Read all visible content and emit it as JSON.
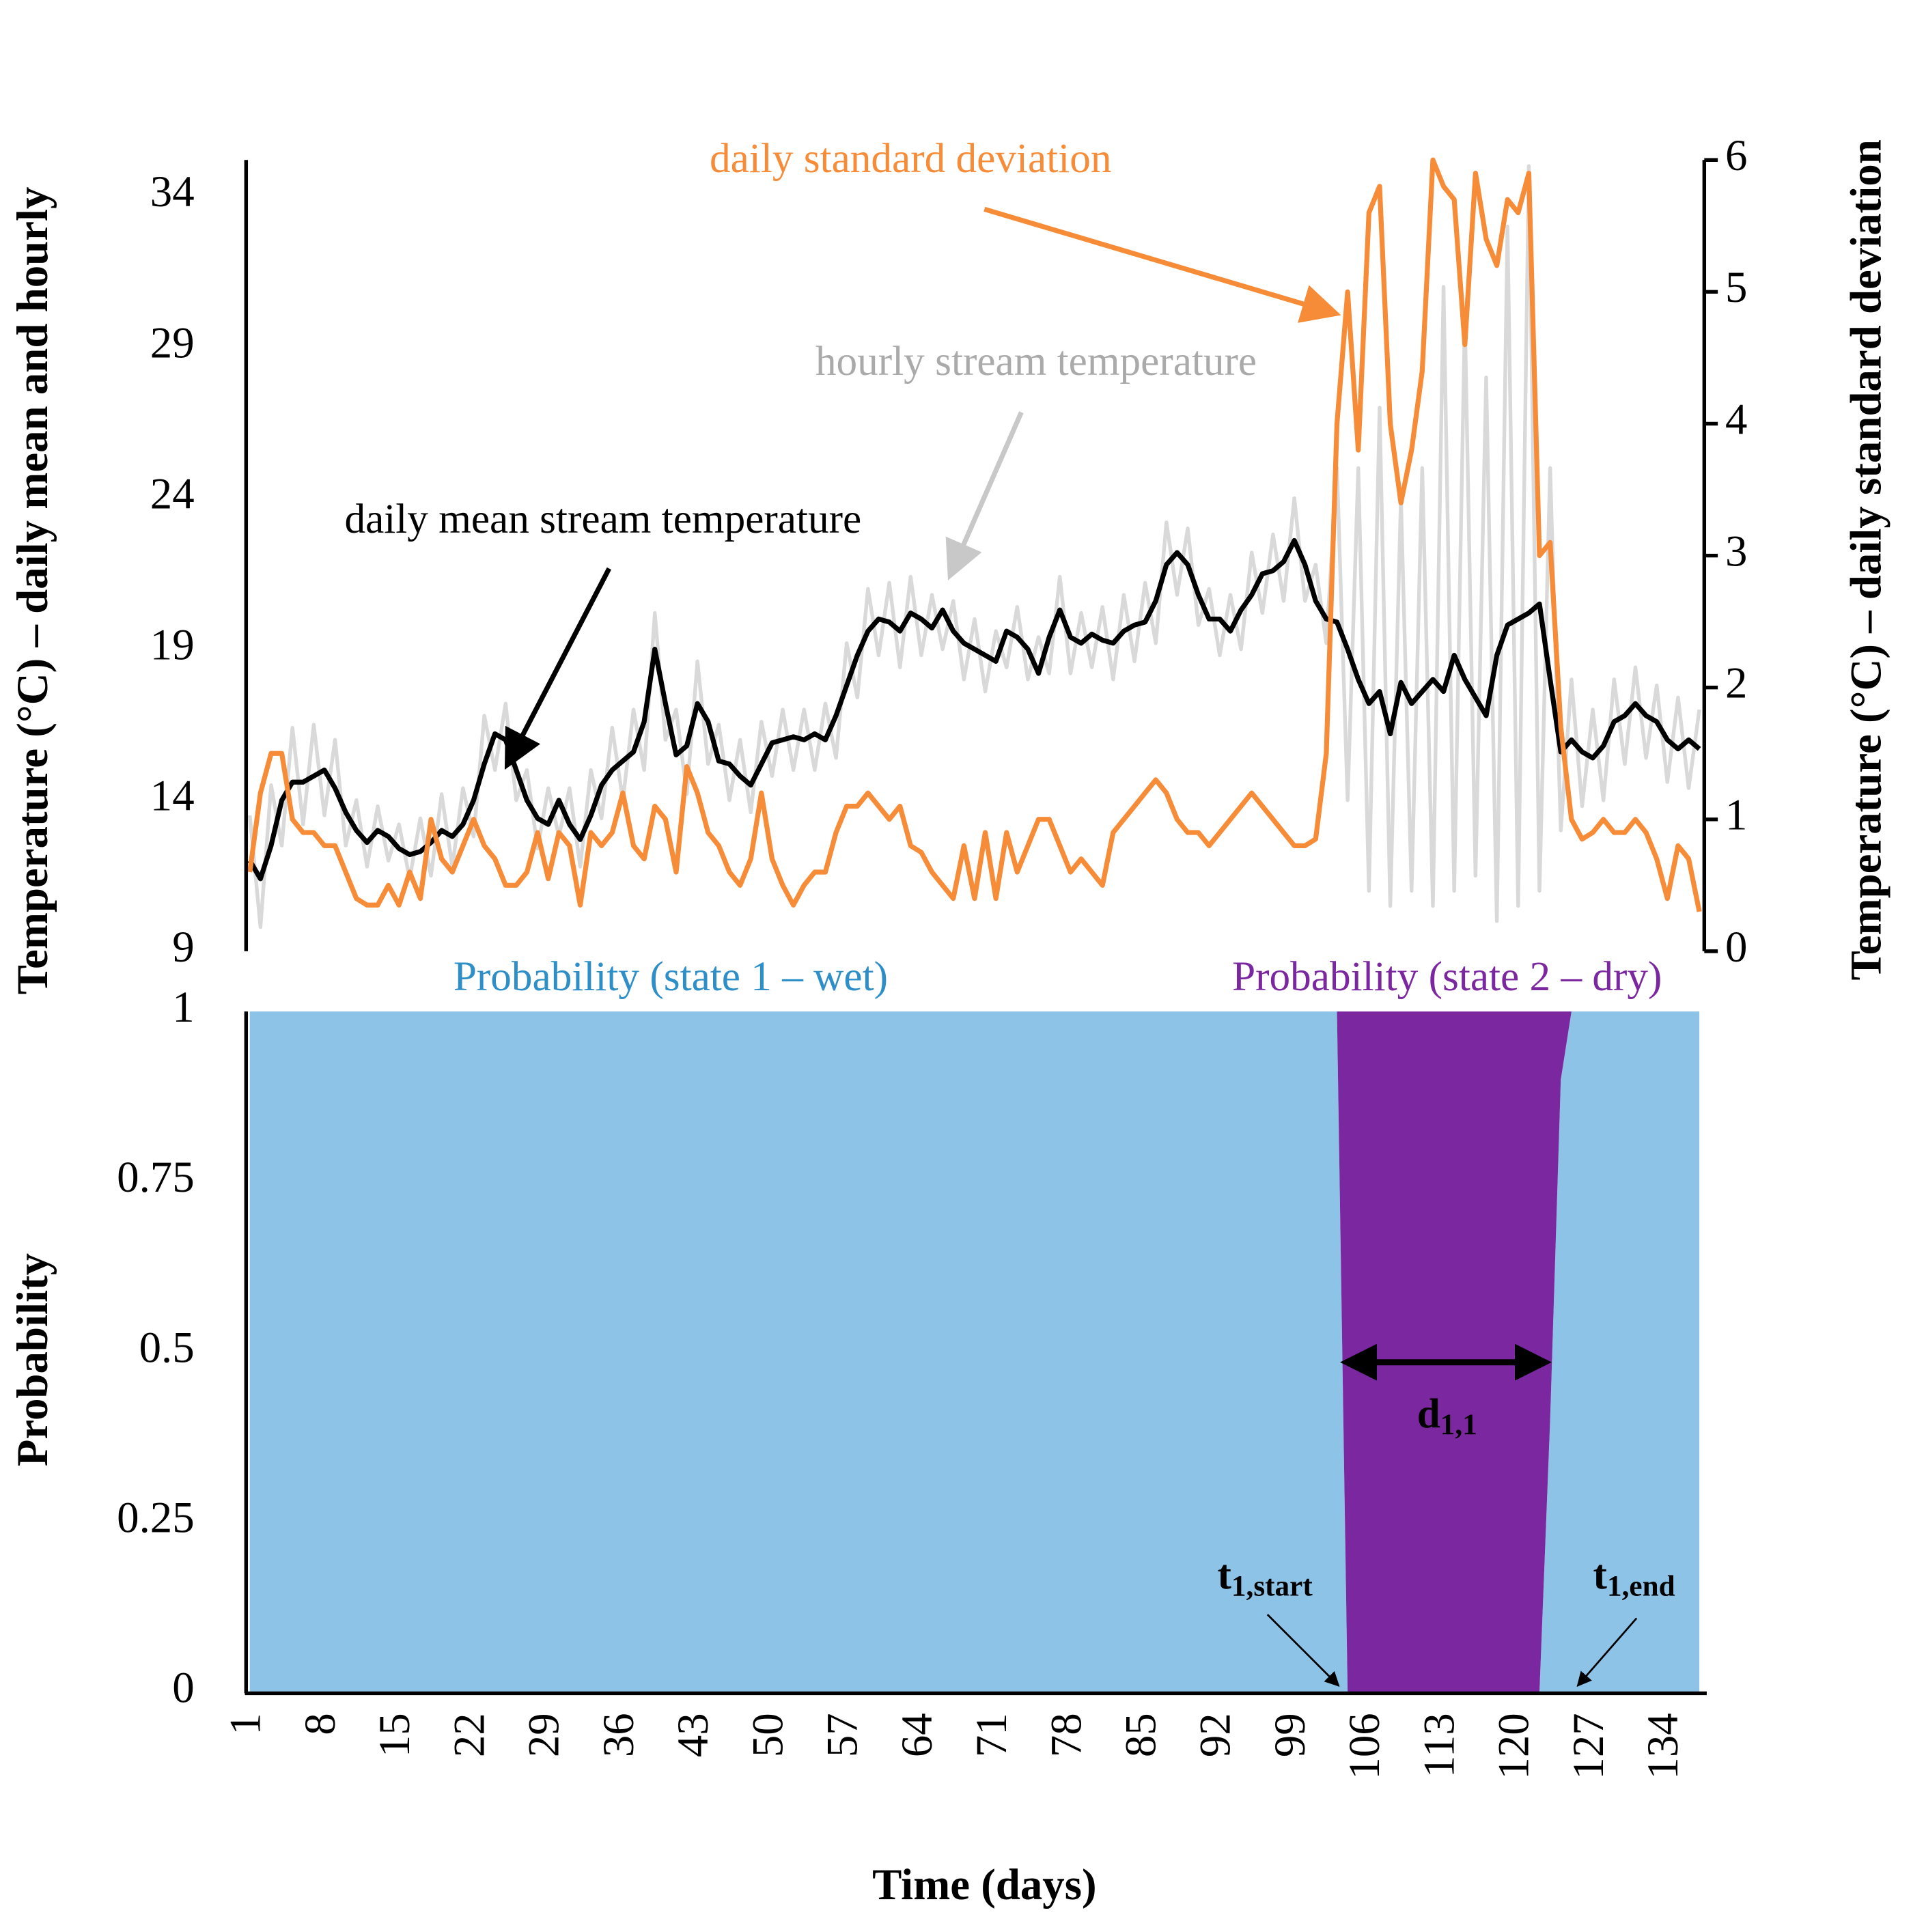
{
  "chart_data": [
    {
      "type": "line",
      "x": [
        1,
        2,
        3,
        4,
        5,
        6,
        7,
        8,
        9,
        10,
        11,
        12,
        13,
        14,
        15,
        16,
        17,
        18,
        19,
        20,
        21,
        22,
        23,
        24,
        25,
        26,
        27,
        28,
        29,
        30,
        31,
        32,
        33,
        34,
        35,
        36,
        37,
        38,
        39,
        40,
        41,
        42,
        43,
        44,
        45,
        46,
        47,
        48,
        49,
        50,
        51,
        52,
        53,
        54,
        55,
        56,
        57,
        58,
        59,
        60,
        61,
        62,
        63,
        64,
        65,
        66,
        67,
        68,
        69,
        70,
        71,
        72,
        73,
        74,
        75,
        76,
        77,
        78,
        79,
        80,
        81,
        82,
        83,
        84,
        85,
        86,
        87,
        88,
        89,
        90,
        91,
        92,
        93,
        94,
        95,
        96,
        97,
        98,
        99,
        100,
        101,
        102,
        103,
        104,
        105,
        106,
        107,
        108,
        109,
        110,
        111,
        112,
        113,
        114,
        115,
        116,
        117,
        118,
        119,
        120,
        121,
        122,
        123,
        124,
        125,
        126,
        127,
        128,
        129,
        130,
        131,
        132,
        133,
        134,
        135,
        136,
        137
      ],
      "xlim": [
        1,
        137
      ],
      "ylim": [
        9,
        35.2
      ],
      "yticks": [
        9,
        14,
        19,
        24,
        29,
        34
      ],
      "y2lim": [
        0,
        6
      ],
      "y2ticks": [
        0,
        1,
        2,
        3,
        4,
        5,
        6
      ],
      "y_label": "Temperature (°C) – daily mean and hourly",
      "y2_label": "Temperature (°C) – daily standard deviation",
      "series": [
        {
          "name": "hourly stream temperature",
          "color": "#d9d9d9",
          "values": [
            13.5,
            9.8,
            14.5,
            12.5,
            16.4,
            13.2,
            16.5,
            13.5,
            16.0,
            12.5,
            14.0,
            11.8,
            13.8,
            12.0,
            13.2,
            11.4,
            13.4,
            11.5,
            14.2,
            11.8,
            14.4,
            12.8,
            16.8,
            15.0,
            17.2,
            14.0,
            15.0,
            12.4,
            14.4,
            12.8,
            14.4,
            11.8,
            15.0,
            13.4,
            16.4,
            14.0,
            17.0,
            15.0,
            20.2,
            16.0,
            17.0,
            14.2,
            18.6,
            15.2,
            16.5,
            14.0,
            16.0,
            13.6,
            16.6,
            14.8,
            17.0,
            15.0,
            17.0,
            15.0,
            17.2,
            15.4,
            19.2,
            17.4,
            21.0,
            18.8,
            21.2,
            18.4,
            21.4,
            18.8,
            20.8,
            19.0,
            20.6,
            18.0,
            20.0,
            17.6,
            19.6,
            18.4,
            20.4,
            18.0,
            19.4,
            18.2,
            21.4,
            18.2,
            20.2,
            18.4,
            20.4,
            18.0,
            20.8,
            18.6,
            21.2,
            19.2,
            23.2,
            20.8,
            23.0,
            19.8,
            21.0,
            18.8,
            20.8,
            19.0,
            22.2,
            20.2,
            22.8,
            20.6,
            24.0,
            20.6,
            21.8,
            19.2,
            25.0,
            14.0,
            25.0,
            11.0,
            27.0,
            10.5,
            24.0,
            11.0,
            25.0,
            10.5,
            31.0,
            11.0,
            30.0,
            11.5,
            28.0,
            10.0,
            33.0,
            10.5,
            35.0,
            11.0,
            25.0,
            13.0,
            18.0,
            13.8,
            17.0,
            14.0,
            18.0,
            15.2,
            18.4,
            15.4,
            17.8,
            14.6,
            17.4,
            14.4,
            17.0
          ]
        },
        {
          "name": "daily mean stream temperature",
          "color": "#000000",
          "values": [
            12.0,
            11.4,
            12.5,
            14.0,
            14.6,
            14.6,
            14.8,
            15.0,
            14.4,
            13.6,
            13.0,
            12.6,
            13.0,
            12.8,
            12.4,
            12.2,
            12.3,
            12.6,
            13.0,
            12.8,
            13.2,
            14.0,
            15.2,
            16.2,
            16.0,
            15.0,
            14.0,
            13.4,
            13.2,
            14.0,
            13.2,
            12.7,
            13.5,
            14.5,
            15.0,
            15.3,
            15.6,
            16.6,
            19.0,
            17.2,
            15.5,
            15.8,
            17.2,
            16.6,
            15.3,
            15.2,
            14.8,
            14.5,
            15.2,
            15.9,
            16.0,
            16.1,
            16.0,
            16.2,
            16.0,
            16.8,
            17.8,
            18.8,
            19.6,
            20.0,
            19.9,
            19.6,
            20.2,
            20.0,
            19.7,
            20.3,
            19.6,
            19.2,
            19.0,
            18.8,
            18.6,
            19.6,
            19.4,
            19.0,
            18.2,
            19.4,
            20.3,
            19.4,
            19.2,
            19.5,
            19.3,
            19.2,
            19.6,
            19.8,
            19.9,
            20.6,
            21.8,
            22.2,
            21.8,
            20.8,
            20.0,
            20.0,
            19.6,
            20.3,
            20.8,
            21.5,
            21.6,
            21.9,
            22.6,
            21.8,
            20.6,
            20.0,
            19.9,
            19.0,
            18.0,
            17.2,
            17.6,
            16.2,
            17.9,
            17.2,
            17.6,
            18.0,
            17.6,
            18.8,
            18.0,
            17.4,
            16.8,
            18.8,
            19.8,
            20.0,
            20.2,
            20.5,
            18.0,
            15.6,
            16.0,
            15.6,
            15.4,
            15.8,
            16.6,
            16.8,
            17.2,
            16.8,
            16.6,
            16.0,
            15.7,
            16.0,
            15.7
          ]
        },
        {
          "name": "daily standard deviation",
          "color": "#f78c38",
          "axis": "y2",
          "values": [
            0.6,
            1.2,
            1.5,
            1.5,
            1.0,
            0.9,
            0.9,
            0.8,
            0.8,
            0.6,
            0.4,
            0.35,
            0.35,
            0.5,
            0.35,
            0.6,
            0.4,
            1.0,
            0.7,
            0.6,
            0.8,
            1.0,
            0.8,
            0.7,
            0.5,
            0.5,
            0.6,
            0.9,
            0.55,
            0.9,
            0.8,
            0.35,
            0.9,
            0.8,
            0.9,
            1.2,
            0.8,
            0.7,
            1.1,
            1.0,
            0.6,
            1.4,
            1.2,
            0.9,
            0.8,
            0.6,
            0.5,
            0.7,
            1.2,
            0.7,
            0.5,
            0.35,
            0.5,
            0.6,
            0.6,
            0.9,
            1.1,
            1.1,
            1.2,
            1.1,
            1.0,
            1.1,
            0.8,
            0.75,
            0.6,
            0.5,
            0.4,
            0.8,
            0.4,
            0.9,
            0.4,
            0.9,
            0.6,
            0.8,
            1.0,
            1.0,
            0.8,
            0.6,
            0.7,
            0.6,
            0.5,
            0.9,
            1.0,
            1.1,
            1.2,
            1.3,
            1.2,
            1.0,
            0.9,
            0.9,
            0.8,
            0.9,
            1.0,
            1.1,
            1.2,
            1.1,
            1.0,
            0.9,
            0.8,
            0.8,
            0.85,
            1.5,
            4.0,
            5.0,
            3.8,
            5.6,
            5.8,
            4.0,
            3.4,
            3.8,
            4.4,
            6.0,
            5.8,
            5.7,
            4.6,
            5.9,
            5.4,
            5.2,
            5.7,
            5.6,
            5.9,
            3.0,
            3.1,
            1.7,
            1.0,
            0.85,
            0.9,
            1.0,
            0.9,
            0.9,
            1.0,
            0.9,
            0.7,
            0.4,
            0.8,
            0.7,
            0.3
          ]
        }
      ]
    },
    {
      "type": "area",
      "stacked": true,
      "x": [
        1,
        2,
        3,
        4,
        5,
        6,
        7,
        8,
        9,
        10,
        11,
        12,
        13,
        14,
        15,
        16,
        17,
        18,
        19,
        20,
        21,
        22,
        23,
        24,
        25,
        26,
        27,
        28,
        29,
        30,
        31,
        32,
        33,
        34,
        35,
        36,
        37,
        38,
        39,
        40,
        41,
        42,
        43,
        44,
        45,
        46,
        47,
        48,
        49,
        50,
        51,
        52,
        53,
        54,
        55,
        56,
        57,
        58,
        59,
        60,
        61,
        62,
        63,
        64,
        65,
        66,
        67,
        68,
        69,
        70,
        71,
        72,
        73,
        74,
        75,
        76,
        77,
        78,
        79,
        80,
        81,
        82,
        83,
        84,
        85,
        86,
        87,
        88,
        89,
        90,
        91,
        92,
        93,
        94,
        95,
        96,
        97,
        98,
        99,
        100,
        101,
        102,
        103,
        104,
        105,
        106,
        107,
        108,
        109,
        110,
        111,
        112,
        113,
        114,
        115,
        116,
        117,
        118,
        119,
        120,
        121,
        122,
        123,
        124,
        125,
        126,
        127,
        128,
        129,
        130,
        131,
        132,
        133,
        134,
        135,
        136,
        137
      ],
      "xlim": [
        1,
        137
      ],
      "xticks": [
        1,
        8,
        15,
        22,
        29,
        36,
        43,
        50,
        57,
        64,
        71,
        78,
        85,
        92,
        99,
        106,
        113,
        120,
        127,
        134
      ],
      "ylim": [
        0,
        1
      ],
      "yticks": [
        0,
        0.25,
        0.5,
        0.75,
        1
      ],
      "x_label": "Time (days)",
      "y_label": "Probability",
      "series": [
        {
          "name": "Probability (state 1 – wet)",
          "color": "#8ec3e8",
          "values": [
            1,
            1,
            1,
            1,
            1,
            1,
            1,
            1,
            1,
            1,
            1,
            1,
            1,
            1,
            1,
            1,
            1,
            1,
            1,
            1,
            1,
            1,
            1,
            1,
            1,
            1,
            1,
            1,
            1,
            1,
            1,
            1,
            1,
            1,
            1,
            1,
            1,
            1,
            1,
            1,
            1,
            1,
            1,
            1,
            1,
            1,
            1,
            1,
            1,
            1,
            1,
            1,
            1,
            1,
            1,
            1,
            1,
            1,
            1,
            1,
            1,
            1,
            1,
            1,
            1,
            1,
            1,
            1,
            1,
            1,
            1,
            1,
            1,
            1,
            1,
            1,
            1,
            1,
            1,
            1,
            1,
            1,
            1,
            1,
            1,
            1,
            1,
            1,
            1,
            1,
            1,
            1,
            1,
            1,
            1,
            1,
            1,
            1,
            1,
            1,
            1,
            1,
            1,
            0,
            0,
            0,
            0,
            0,
            0,
            0,
            0,
            0,
            0,
            0,
            0,
            0,
            0,
            0,
            0,
            0,
            0,
            0,
            0.4,
            0.9,
            1,
            1,
            1,
            1,
            1,
            1,
            1,
            1,
            1,
            1,
            1,
            1,
            1
          ]
        },
        {
          "name": "Probability (state 2 – dry)",
          "color": "#7b28a0",
          "values": [
            0,
            0,
            0,
            0,
            0,
            0,
            0,
            0,
            0,
            0,
            0,
            0,
            0,
            0,
            0,
            0,
            0,
            0,
            0,
            0,
            0,
            0,
            0,
            0,
            0,
            0,
            0,
            0,
            0,
            0,
            0,
            0,
            0,
            0,
            0,
            0,
            0,
            0,
            0,
            0,
            0,
            0,
            0,
            0,
            0,
            0,
            0,
            0,
            0,
            0,
            0,
            0,
            0,
            0,
            0,
            0,
            0,
            0,
            0,
            0,
            0,
            0,
            0,
            0,
            0,
            0,
            0,
            0,
            0,
            0,
            0,
            0,
            0,
            0,
            0,
            0,
            0,
            0,
            0,
            0,
            0,
            0,
            0,
            0,
            0,
            0,
            0,
            0,
            0,
            0,
            0,
            0,
            0,
            0,
            0,
            0,
            0,
            0,
            0,
            0,
            0,
            0,
            0,
            1,
            1,
            1,
            1,
            1,
            1,
            1,
            1,
            1,
            1,
            1,
            1,
            1,
            1,
            1,
            1,
            1,
            1,
            1,
            0.6,
            0.1,
            0,
            0,
            0,
            0,
            0,
            0,
            0,
            0,
            0,
            0,
            0,
            0,
            0
          ]
        }
      ],
      "annotations": [
        {
          "text": "d",
          "sub": "1,1"
        },
        {
          "text": "t",
          "sub": "1,start"
        },
        {
          "text": "t",
          "sub": "1,end"
        }
      ]
    }
  ]
}
